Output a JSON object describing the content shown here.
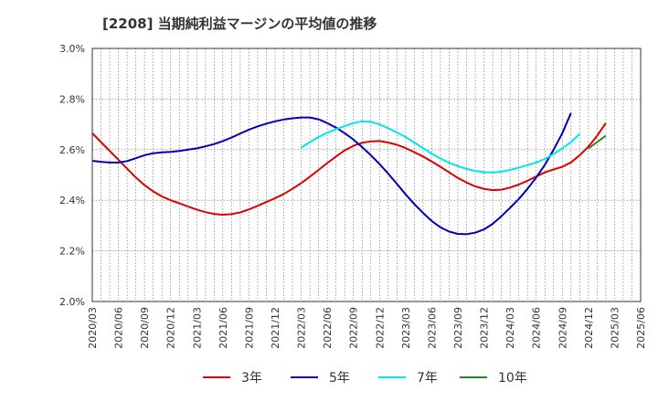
{
  "chart_data": {
    "type": "line",
    "title": "[2208]  当期純利益マージンの平均値の推移",
    "xlabel": "",
    "ylabel": "",
    "ylim": [
      2.0,
      3.0
    ],
    "yticks": [
      "2.0%",
      "2.2%",
      "2.4%",
      "2.6%",
      "2.8%",
      "3.0%"
    ],
    "ytick_values": [
      2.0,
      2.2,
      2.4,
      2.6,
      2.8,
      3.0
    ],
    "xticks": [
      "2020/03",
      "2020/06",
      "2020/09",
      "2020/12",
      "2021/03",
      "2021/06",
      "2021/09",
      "2021/12",
      "2022/03",
      "2022/06",
      "2022/09",
      "2022/12",
      "2023/03",
      "2023/06",
      "2023/09",
      "2023/12",
      "2024/03",
      "2024/06",
      "2024/09",
      "2024/12",
      "2025/03",
      "2025/06"
    ],
    "grid": true,
    "legend_position": "bottom",
    "series": [
      {
        "name": "3年",
        "color": "#dd0000",
        "start": "2020/03",
        "values": [
          2.665,
          2.63,
          2.595,
          2.56,
          2.525,
          2.49,
          2.46,
          2.435,
          2.415,
          2.4,
          2.388,
          2.375,
          2.363,
          2.353,
          2.346,
          2.343,
          2.345,
          2.352,
          2.364,
          2.378,
          2.393,
          2.408,
          2.425,
          2.445,
          2.468,
          2.493,
          2.52,
          2.547,
          2.573,
          2.597,
          2.615,
          2.627,
          2.633,
          2.634,
          2.628,
          2.619,
          2.606,
          2.59,
          2.573,
          2.553,
          2.532,
          2.51,
          2.488,
          2.47,
          2.455,
          2.445,
          2.44,
          2.442,
          2.45,
          2.462,
          2.477,
          2.494,
          2.51,
          2.522,
          2.532,
          2.55,
          2.578,
          2.612,
          2.655,
          2.705
        ]
      },
      {
        "name": "5年",
        "color": "#0000bb",
        "start": "2020/03",
        "values": [
          2.556,
          2.552,
          2.549,
          2.549,
          2.555,
          2.566,
          2.578,
          2.586,
          2.589,
          2.591,
          2.595,
          2.6,
          2.605,
          2.613,
          2.622,
          2.634,
          2.648,
          2.664,
          2.679,
          2.692,
          2.703,
          2.712,
          2.719,
          2.724,
          2.727,
          2.727,
          2.72,
          2.705,
          2.687,
          2.665,
          2.64,
          2.61,
          2.578,
          2.543,
          2.505,
          2.465,
          2.423,
          2.385,
          2.35,
          2.318,
          2.293,
          2.276,
          2.267,
          2.266,
          2.272,
          2.285,
          2.307,
          2.337,
          2.37,
          2.405,
          2.445,
          2.49,
          2.54,
          2.6,
          2.665,
          2.745
        ]
      },
      {
        "name": "7年",
        "color": "#00e8e8",
        "start": "2022/03",
        "values": [
          2.608,
          2.63,
          2.65,
          2.667,
          2.68,
          2.693,
          2.705,
          2.712,
          2.71,
          2.7,
          2.685,
          2.668,
          2.65,
          2.628,
          2.606,
          2.584,
          2.565,
          2.548,
          2.535,
          2.524,
          2.516,
          2.511,
          2.51,
          2.513,
          2.52,
          2.529,
          2.539,
          2.549,
          2.563,
          2.583,
          2.605,
          2.63,
          2.662
        ]
      },
      {
        "name": "10年",
        "color": "#228822",
        "start": "2024/12",
        "values": [
          2.605,
          2.63,
          2.655
        ]
      }
    ]
  }
}
